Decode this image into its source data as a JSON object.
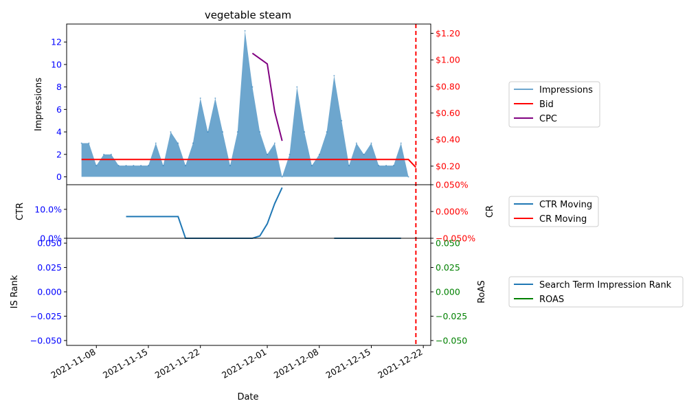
{
  "chart_data": {
    "type": "area",
    "title": "vegetable steam",
    "xlabel": "Date",
    "x_ticks": [
      "2021-11-08",
      "2021-11-15",
      "2021-11-22",
      "2021-12-01",
      "2021-12-08",
      "2021-12-15",
      "2021-12-22"
    ],
    "vline_date": "2021-12-21",
    "vline_color": "#ff0000",
    "panel1": {
      "ylabel_left": "Impressions",
      "ylim_left": [
        -0.7,
        13.6
      ],
      "yticks_left": [
        0,
        2,
        4,
        6,
        8,
        10,
        12
      ],
      "left_tick_color": "#0000ff",
      "ylim_right": [
        0.06,
        1.27
      ],
      "yticks_right": [
        0.2,
        0.4,
        0.6,
        0.8,
        1.0,
        1.2
      ],
      "yticks_right_labels": [
        "$0.20",
        "$0.40",
        "$0.60",
        "$0.80",
        "$1.00",
        "$1.20"
      ],
      "right_tick_color": "#ff0000",
      "impressions": {
        "name": "Impressions",
        "color": "#1f77b4",
        "dates": [
          "2021-11-06",
          "2021-11-07",
          "2021-11-08",
          "2021-11-09",
          "2021-11-10",
          "2021-11-11",
          "2021-11-12",
          "2021-11-13",
          "2021-11-14",
          "2021-11-15",
          "2021-11-16",
          "2021-11-17",
          "2021-11-18",
          "2021-11-19",
          "2021-11-20",
          "2021-11-21",
          "2021-11-22",
          "2021-11-23",
          "2021-11-24",
          "2021-11-25",
          "2021-11-26",
          "2021-11-27",
          "2021-11-28",
          "2021-11-29",
          "2021-11-30",
          "2021-12-01",
          "2021-12-02",
          "2021-12-03",
          "2021-12-04",
          "2021-12-05",
          "2021-12-06",
          "2021-12-07",
          "2021-12-08",
          "2021-12-09",
          "2021-12-10",
          "2021-12-11",
          "2021-12-12",
          "2021-12-13",
          "2021-12-14",
          "2021-12-15",
          "2021-12-16",
          "2021-12-17",
          "2021-12-18",
          "2021-12-19",
          "2021-12-20"
        ],
        "values": [
          3,
          3,
          1,
          2,
          2,
          1,
          1,
          1,
          1,
          1,
          3,
          1,
          4,
          3,
          1,
          3,
          7,
          4,
          7,
          4,
          1,
          4,
          13,
          8,
          4,
          2,
          3,
          0,
          2,
          8,
          4,
          1,
          2,
          4,
          9,
          5,
          1,
          3,
          2,
          3,
          1,
          1,
          1,
          3,
          0
        ]
      },
      "bid": {
        "name": "Bid",
        "color": "#ff0000",
        "dates": [
          "2021-11-06",
          "2021-12-20",
          "2021-12-21"
        ],
        "values": [
          0.25,
          0.25,
          0.19
        ]
      },
      "cpc": {
        "name": "CPC",
        "color": "#800080",
        "dates": [
          "2021-11-29",
          "2021-12-01",
          "2021-12-02",
          "2021-12-03"
        ],
        "values": [
          1.05,
          0.97,
          0.61,
          0.39
        ]
      }
    },
    "panel2": {
      "ylabel_left": "CTR",
      "ylabel_right": "CR",
      "ylim_left": [
        0,
        0.185
      ],
      "yticks_left": [
        0,
        0.1
      ],
      "yticks_left_labels": [
        "0.0%",
        "10.0%"
      ],
      "left_tick_color": "#0000ff",
      "ylim_right": [
        -0.05,
        0.05
      ],
      "yticks_right": [
        -0.05,
        0.0,
        0.05
      ],
      "yticks_right_labels": [
        "−0.050%",
        "0.000%",
        "0.050%"
      ],
      "right_tick_color": "#ff0000",
      "ctr_moving": {
        "name": "CTR Moving",
        "color": "#1f77b4",
        "segments": [
          {
            "dates": [
              "2021-11-12",
              "2021-11-19",
              "2021-11-20",
              "2021-11-29",
              "2021-11-30",
              "2021-12-01",
              "2021-12-02",
              "2021-12-03"
            ],
            "values": [
              0.075,
              0.075,
              0.0,
              0.0,
              0.008,
              0.05,
              0.12,
              0.175
            ]
          },
          {
            "dates": [
              "2021-12-10",
              "2021-12-19"
            ],
            "values": [
              0.0,
              0.0
            ]
          }
        ]
      },
      "cr_moving": {
        "name": "CR Moving",
        "color": "#ff0000"
      }
    },
    "panel3": {
      "ylabel_left": "IS Rank",
      "ylabel_right": "RoAS",
      "ylim": [
        -0.055,
        0.055
      ],
      "yticks": [
        -0.05,
        -0.025,
        0.0,
        0.025,
        0.05
      ],
      "yticks_labels": [
        "−0.050",
        "−0.025",
        "0.000",
        "0.025",
        "0.050"
      ],
      "left_tick_color": "#0000ff",
      "right_tick_color": "#008000",
      "is_rank": {
        "name": "Search Term Impression Rank",
        "color": "#1f77b4"
      },
      "roas": {
        "name": "ROAS",
        "color": "#008000"
      }
    }
  }
}
